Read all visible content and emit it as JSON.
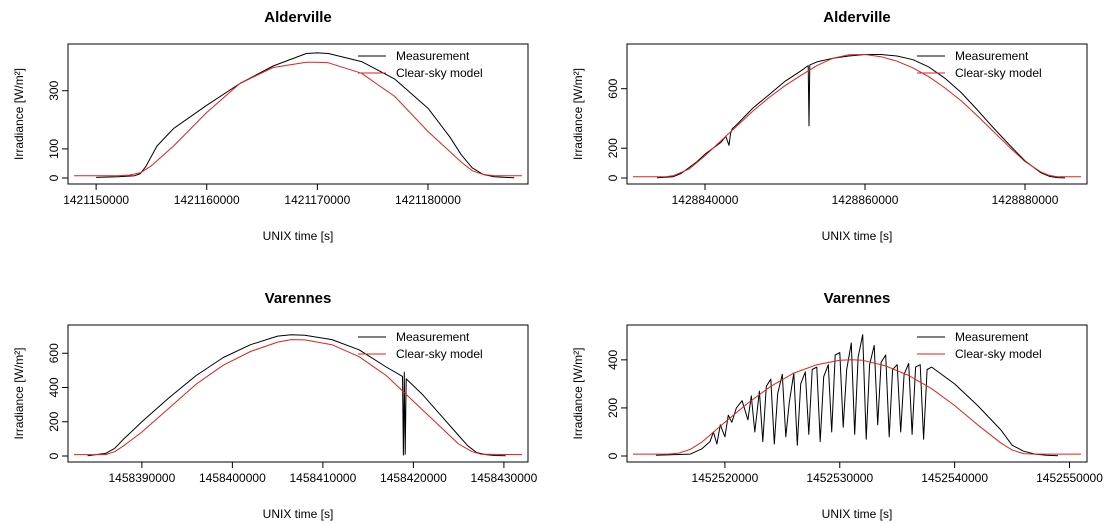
{
  "chart_data": [
    {
      "type": "line",
      "title": "Alderville",
      "xlabel": "UNIX time [s]",
      "ylabel": "Irradiance [W/m²]",
      "xlim": [
        1421148000,
        1421188500
      ],
      "ylim": [
        0,
        440
      ],
      "xticks": [
        1421150000,
        1421160000,
        1421170000,
        1421180000
      ],
      "yticks": [
        0,
        100,
        300
      ],
      "grid": false,
      "legend": "top-right",
      "series": [
        {
          "name": "Measurement",
          "color": "#000000",
          "x": [
            1421150000,
            1421152000,
            1421153500,
            1421154000,
            1421154500,
            1421155500,
            1421157000,
            1421160000,
            1421163000,
            1421166000,
            1421169000,
            1421170000,
            1421171000,
            1421174000,
            1421177000,
            1421180000,
            1421182000,
            1421183000,
            1421184000,
            1421185000,
            1421186000,
            1421187000,
            1421187800
          ],
          "y": [
            2,
            4,
            8,
            15,
            40,
            110,
            170,
            250,
            325,
            385,
            428,
            430,
            428,
            400,
            340,
            240,
            140,
            80,
            35,
            12,
            4,
            2,
            1
          ]
        },
        {
          "name": "Clear-sky model",
          "color": "#dd2222",
          "x": [
            1421148000,
            1421152000,
            1421153000,
            1421154000,
            1421155000,
            1421157000,
            1421160000,
            1421163000,
            1421166000,
            1421169000,
            1421170000,
            1421171000,
            1421174000,
            1421177000,
            1421180000,
            1421183000,
            1421184000,
            1421185000,
            1421186000,
            1421187000,
            1421188500
          ],
          "y": [
            8,
            8,
            10,
            18,
            42,
            110,
            225,
            325,
            380,
            398,
            398,
            396,
            360,
            280,
            160,
            55,
            25,
            12,
            8,
            8,
            8
          ]
        }
      ]
    },
    {
      "type": "line",
      "title": "Alderville",
      "xlabel": "UNIX time [s]",
      "ylabel": "Irradiance [W/m²]",
      "xlim": [
        1428831000,
        1428887000
      ],
      "ylim": [
        0,
        860
      ],
      "xticks": [
        1428840000,
        1428860000,
        1428880000
      ],
      "yticks": [
        0,
        200,
        600
      ],
      "grid": false,
      "legend": "top-right",
      "series": [
        {
          "name": "Measurement",
          "color": "#000000",
          "x": [
            1428834000,
            1428836000,
            1428837000,
            1428838000,
            1428839000,
            1428840000,
            1428841000,
            1428842000,
            1428842600,
            1428843000,
            1428843200,
            1428843400,
            1428844000,
            1428846000,
            1428848000,
            1428850000,
            1428852000,
            1428852900,
            1428853000,
            1428853100,
            1428854000,
            1428856000,
            1428858000,
            1428860000,
            1428862000,
            1428864000,
            1428866000,
            1428868000,
            1428870000,
            1428872000,
            1428874000,
            1428876000,
            1428878000,
            1428880000,
            1428882000,
            1428883000,
            1428884000,
            1428885000
          ],
          "y": [
            2,
            8,
            30,
            70,
            110,
            160,
            200,
            240,
            280,
            220,
            300,
            330,
            360,
            470,
            560,
            650,
            720,
            755,
            350,
            760,
            780,
            805,
            820,
            830,
            830,
            820,
            795,
            745,
            670,
            575,
            460,
            340,
            225,
            115,
            35,
            12,
            3,
            1
          ]
        },
        {
          "name": "Clear-sky model",
          "color": "#dd2222",
          "x": [
            1428831000,
            1428835000,
            1428836000,
            1428838000,
            1428840000,
            1428842000,
            1428844000,
            1428846000,
            1428848000,
            1428850000,
            1428852000,
            1428854000,
            1428856000,
            1428858000,
            1428860000,
            1428862000,
            1428864000,
            1428866000,
            1428868000,
            1428870000,
            1428872000,
            1428874000,
            1428876000,
            1428878000,
            1428880000,
            1428882000,
            1428883000,
            1428884000,
            1428887000
          ],
          "y": [
            8,
            8,
            15,
            60,
            150,
            250,
            350,
            450,
            540,
            620,
            690,
            755,
            805,
            828,
            830,
            815,
            785,
            740,
            680,
            605,
            520,
            420,
            315,
            210,
            110,
            40,
            18,
            8,
            8
          ]
        }
      ]
    },
    {
      "type": "line",
      "title": "Varennes",
      "xlabel": "UNIX time [s]",
      "ylabel": "Irradiance [W/m²]",
      "xlim": [
        1458382500,
        1458432000
      ],
      "ylim": [
        0,
        730
      ],
      "xticks": [
        1458390000,
        1458400000,
        1458410000,
        1458420000,
        1458430000
      ],
      "yticks": [
        0,
        200,
        400,
        600
      ],
      "grid": false,
      "legend": "top-right",
      "series": [
        {
          "name": "Measurement",
          "color": "#000000",
          "x": [
            1458384000,
            1458386000,
            1458387000,
            1458388000,
            1458390000,
            1458393000,
            1458396000,
            1458399000,
            1458402000,
            1458405000,
            1458406500,
            1458408000,
            1458411000,
            1458414000,
            1458417000,
            1458418800,
            1458418900,
            1458419000,
            1458419100,
            1458419200,
            1458421000,
            1458423000,
            1458425000,
            1458426000,
            1458427000,
            1458428000,
            1458429000,
            1458430200
          ],
          "y": [
            2,
            15,
            45,
            100,
            200,
            340,
            470,
            575,
            650,
            700,
            708,
            705,
            680,
            620,
            520,
            465,
            5,
            490,
            10,
            450,
            360,
            240,
            120,
            60,
            20,
            8,
            3,
            1
          ]
        },
        {
          "name": "Clear-sky model",
          "color": "#dd2222",
          "x": [
            1458382500,
            1458386000,
            1458387000,
            1458388000,
            1458390000,
            1458393000,
            1458396000,
            1458399000,
            1458402000,
            1458405000,
            1458406500,
            1458408000,
            1458411000,
            1458414000,
            1458417000,
            1458420000,
            1458423000,
            1458425000,
            1458426500,
            1458427500,
            1458432000
          ],
          "y": [
            8,
            8,
            25,
            60,
            140,
            280,
            420,
            530,
            610,
            665,
            680,
            678,
            650,
            580,
            470,
            320,
            170,
            70,
            25,
            10,
            8
          ]
        }
      ]
    },
    {
      "type": "line",
      "title": "Varennes",
      "xlabel": "UNIX time [s]",
      "ylabel": "Irradiance [W/m²]",
      "xlim": [
        1452512000,
        1452551000
      ],
      "ylim": [
        0,
        520
      ],
      "xticks": [
        1452520000,
        1452530000,
        1452540000,
        1452550000
      ],
      "yticks": [
        0,
        200,
        400
      ],
      "grid": false,
      "legend": "top-right",
      "series": [
        {
          "name": "Measurement",
          "color": "#000000",
          "x": [
            1452514000,
            1452517000,
            1452518000,
            1452518700,
            1452519000,
            1452519300,
            1452519600,
            1452520000,
            1452520300,
            1452520600,
            1452521000,
            1452521500,
            1452522000,
            1452522300,
            1452522600,
            1452523000,
            1452523300,
            1452523600,
            1452524000,
            1452524300,
            1452524600,
            1452525000,
            1452525300,
            1452525600,
            1452526000,
            1452526300,
            1452526600,
            1452527000,
            1452527300,
            1452527600,
            1452528000,
            1452528300,
            1452528600,
            1452529000,
            1452529300,
            1452529600,
            1452530000,
            1452530300,
            1452530600,
            1452531000,
            1452531300,
            1452531600,
            1452532000,
            1452532300,
            1452532600,
            1452533000,
            1452533300,
            1452533600,
            1452534000,
            1452534300,
            1452534600,
            1452535000,
            1452535300,
            1452535600,
            1452536000,
            1452536300,
            1452536600,
            1452537000,
            1452537300,
            1452537600,
            1452538000,
            1452540000,
            1452542000,
            1452544000,
            1452545000,
            1452546000,
            1452547000,
            1452548000,
            1452549000
          ],
          "y": [
            3,
            8,
            30,
            60,
            100,
            50,
            130,
            80,
            170,
            140,
            200,
            230,
            150,
            250,
            100,
            270,
            60,
            290,
            320,
            50,
            260,
            340,
            80,
            220,
            345,
            45,
            300,
            350,
            90,
            360,
            370,
            60,
            330,
            380,
            100,
            420,
            430,
            120,
            360,
            470,
            90,
            410,
            505,
            70,
            380,
            460,
            130,
            390,
            420,
            80,
            360,
            380,
            100,
            340,
            385,
            90,
            370,
            380,
            70,
            360,
            370,
            300,
            210,
            110,
            45,
            20,
            8,
            3,
            1
          ]
        },
        {
          "name": "Clear-sky model",
          "color": "#dd2222",
          "x": [
            1452512000,
            1452515000,
            1452516000,
            1452517000,
            1452518000,
            1452520000,
            1452522000,
            1452524000,
            1452526000,
            1452528000,
            1452530000,
            1452531000,
            1452532000,
            1452534000,
            1452536000,
            1452538000,
            1452540000,
            1452542000,
            1452544000,
            1452545000,
            1452546000,
            1452547000,
            1452551000
          ],
          "y": [
            8,
            8,
            12,
            28,
            58,
            140,
            220,
            290,
            345,
            380,
            398,
            400,
            398,
            375,
            335,
            280,
            210,
            130,
            55,
            25,
            10,
            8,
            8
          ]
        }
      ]
    }
  ]
}
